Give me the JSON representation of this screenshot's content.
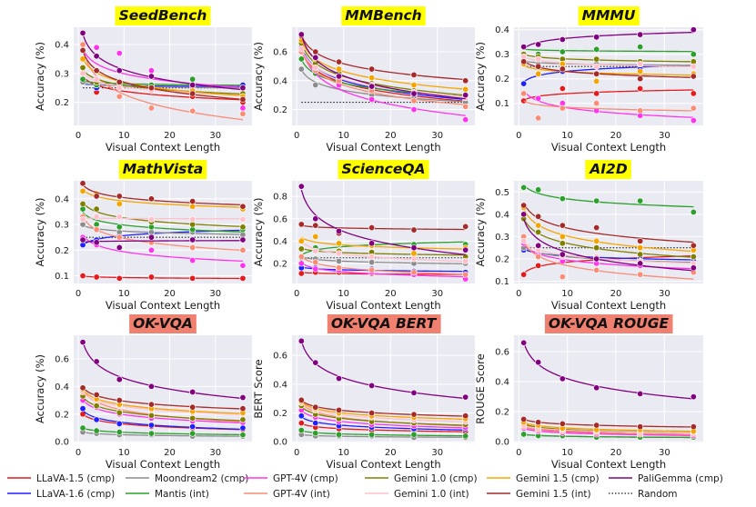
{
  "figure": {
    "background": "#eaeaf2",
    "yellow": "#ffff00",
    "salmon": "#f08070"
  },
  "series": [
    {
      "key": "llava15",
      "label": "LLaVA-1.5 (cmp)",
      "color": "#e41a1c",
      "style": "solid"
    },
    {
      "key": "llava16",
      "label": "LLaVA-1.6 (cmp)",
      "color": "#1f1fff",
      "style": "solid"
    },
    {
      "key": "moondream",
      "label": "Moondream2 (cmp)",
      "color": "#8c8c8c",
      "style": "solid"
    },
    {
      "key": "mantis",
      "label": "Mantis (int)",
      "color": "#2ca02c",
      "style": "solid"
    },
    {
      "key": "gpt4v_cmp",
      "label": "GPT-4V (cmp)",
      "color": "#ff33ee",
      "style": "solid"
    },
    {
      "key": "gpt4v_int",
      "label": "GPT-4V (int)",
      "color": "#fa8c76",
      "style": "solid"
    },
    {
      "key": "gem10_cmp",
      "label": "Gemini 1.0 (cmp)",
      "color": "#808000",
      "style": "solid"
    },
    {
      "key": "gem10_int",
      "label": "Gemini 1.0 (int)",
      "color": "#ffc0cb",
      "style": "solid"
    },
    {
      "key": "gem15_cmp",
      "label": "Gemini 1.5 (cmp)",
      "color": "#f5a500",
      "style": "solid"
    },
    {
      "key": "gem15_int",
      "label": "Gemini 1.5 (int)",
      "color": "#a52a2a",
      "style": "solid"
    },
    {
      "key": "paligemma",
      "label": "PaliGemma (cmp)",
      "color": "#800080",
      "style": "solid"
    },
    {
      "key": "random",
      "label": "Random",
      "color": "#222222",
      "style": "dotted"
    }
  ],
  "chart_data": [
    {
      "type": "scatter",
      "title": "SeedBench",
      "title_bg": "yellow",
      "xlabel": "Visual Context Length",
      "ylabel": "Accuracy (%)",
      "xlim": [
        -1,
        38
      ],
      "ylim": [
        0.12,
        0.46
      ],
      "xticks": [
        0,
        10,
        20,
        30
      ],
      "yticks": [
        0.2,
        0.3,
        0.4
      ],
      "x": [
        1,
        4,
        9,
        16,
        25,
        36
      ],
      "random": 0.25,
      "series": {
        "llava15": [
          0.3,
          0.235,
          0.25,
          0.24,
          0.22,
          0.2
        ],
        "llava16": [
          0.27,
          0.25,
          0.26,
          0.26,
          0.25,
          0.26
        ],
        "moondream": [
          0.27,
          0.26,
          0.25,
          0.25,
          0.26,
          0.25
        ],
        "mantis": [
          0.28,
          0.26,
          0.26,
          0.26,
          0.28,
          0.25
        ],
        "gpt4v_cmp": [
          0.32,
          0.39,
          0.37,
          0.31,
          0.25,
          0.18
        ],
        "gpt4v_int": [
          0.4,
          0.28,
          0.22,
          0.18,
          0.17,
          0.16
        ],
        "gem10_cmp": [
          0.32,
          0.27,
          0.26,
          0.25,
          0.24,
          0.23
        ],
        "gem10_int": [
          0.3,
          0.28,
          0.25,
          0.24,
          0.24,
          0.22
        ],
        "gem15_cmp": [
          0.35,
          0.31,
          0.27,
          0.25,
          0.24,
          0.22
        ],
        "gem15_int": [
          0.38,
          0.31,
          0.27,
          0.25,
          0.23,
          0.21
        ],
        "paligemma": [
          0.44,
          0.36,
          0.31,
          0.29,
          0.26,
          0.25
        ]
      }
    },
    {
      "type": "scatter",
      "title": "MMBench",
      "title_bg": "yellow",
      "xlabel": "Visual Context Length",
      "ylabel": "Accuracy (%)",
      "xlim": [
        -1,
        38
      ],
      "ylim": [
        0.09,
        0.77
      ],
      "xticks": [
        0,
        10,
        20,
        30
      ],
      "yticks": [
        0.2,
        0.4,
        0.6
      ],
      "x": [
        1,
        4,
        9,
        16,
        25,
        36
      ],
      "random": 0.25,
      "series": {
        "llava15": [
          0.62,
          0.45,
          0.4,
          0.35,
          0.3,
          0.25
        ],
        "llava16": [
          0.63,
          0.5,
          0.42,
          0.35,
          0.3,
          0.27
        ],
        "moondream": [
          0.48,
          0.37,
          0.36,
          0.3,
          0.28,
          0.25
        ],
        "mantis": [
          0.55,
          0.45,
          0.38,
          0.34,
          0.32,
          0.3
        ],
        "gpt4v_cmp": [
          0.6,
          0.48,
          0.37,
          0.27,
          0.2,
          0.13
        ],
        "gpt4v_int": [
          0.6,
          0.47,
          0.4,
          0.33,
          0.26,
          0.22
        ],
        "gem10_cmp": [
          0.66,
          0.52,
          0.45,
          0.38,
          0.33,
          0.3
        ],
        "gem10_int": [
          0.62,
          0.49,
          0.43,
          0.37,
          0.32,
          0.28
        ],
        "gem15_cmp": [
          0.68,
          0.55,
          0.48,
          0.42,
          0.37,
          0.34
        ],
        "gem15_int": [
          0.71,
          0.6,
          0.53,
          0.48,
          0.44,
          0.4
        ],
        "paligemma": [
          0.72,
          0.56,
          0.43,
          0.36,
          0.31,
          0.3
        ]
      }
    },
    {
      "type": "scatter",
      "title": "MMMU",
      "title_bg": "yellow",
      "xlabel": "Visual Context Length",
      "ylabel": "Accuracy (%)",
      "xlim": [
        -1,
        38
      ],
      "ylim": [
        0.01,
        0.41
      ],
      "xticks": [
        0,
        10,
        20,
        30
      ],
      "yticks": [
        0.1,
        0.2,
        0.3,
        0.4
      ],
      "x": [
        1,
        4,
        9,
        16,
        25,
        36
      ],
      "random": 0.25,
      "series": {
        "llava15": [
          0.11,
          0.12,
          0.16,
          0.14,
          0.16,
          0.14
        ],
        "llava16": [
          0.18,
          0.22,
          0.23,
          0.25,
          0.24,
          0.25
        ],
        "moondream": [
          0.28,
          0.26,
          0.25,
          0.26,
          0.26,
          0.26
        ],
        "mantis": [
          0.33,
          0.3,
          0.31,
          0.32,
          0.33,
          0.3
        ],
        "gpt4v_cmp": [
          0.14,
          0.12,
          0.1,
          0.07,
          0.05,
          0.03
        ],
        "gpt4v_int": [
          0.14,
          0.04,
          0.08,
          0.1,
          0.07,
          0.08
        ],
        "gem10_cmp": [
          0.3,
          0.29,
          0.28,
          0.28,
          0.27,
          0.27
        ],
        "gem10_int": [
          0.29,
          0.28,
          0.26,
          0.25,
          0.26,
          0.25
        ],
        "gem15_cmp": [
          0.26,
          0.22,
          0.26,
          0.19,
          0.23,
          0.22
        ],
        "gem15_int": [
          0.27,
          0.25,
          0.24,
          0.22,
          0.2,
          0.21
        ],
        "paligemma": [
          0.33,
          0.34,
          0.36,
          0.37,
          0.38,
          0.4
        ]
      }
    },
    {
      "type": "scatter",
      "title": "MathVista",
      "title_bg": "yellow",
      "xlabel": "Visual Context Length",
      "ylabel": "Accuracy (%)",
      "xlim": [
        -1,
        38
      ],
      "ylim": [
        0.07,
        0.47
      ],
      "xticks": [
        0,
        10,
        20,
        30
      ],
      "yticks": [
        0.1,
        0.2,
        0.3,
        0.4
      ],
      "x": [
        1,
        4,
        9,
        16,
        25,
        36
      ],
      "random": 0.25,
      "series": {
        "llava15": [
          0.1,
          0.095,
          0.09,
          0.095,
          0.09,
          0.09
        ],
        "llava16": [
          0.22,
          0.24,
          0.26,
          0.26,
          0.27,
          0.28
        ],
        "moondream": [
          0.3,
          0.28,
          0.27,
          0.27,
          0.27,
          0.26
        ],
        "mantis": [
          0.36,
          0.3,
          0.29,
          0.29,
          0.28,
          0.28
        ],
        "gpt4v_cmp": [
          0.25,
          0.22,
          0.21,
          0.2,
          0.16,
          0.14
        ],
        "gpt4v_int": [
          0.33,
          0.28,
          0.25,
          0.23,
          0.21,
          0.2
        ],
        "gem10_cmp": [
          0.38,
          0.36,
          0.33,
          0.31,
          0.3,
          0.29
        ],
        "gem10_int": [
          0.32,
          0.33,
          0.33,
          0.32,
          0.32,
          0.32
        ],
        "gem15_cmp": [
          0.43,
          0.42,
          0.38,
          0.4,
          0.37,
          0.36
        ],
        "gem15_int": [
          0.46,
          0.41,
          0.41,
          0.4,
          0.39,
          0.37
        ],
        "paligemma": [
          0.24,
          0.23,
          0.21,
          0.25,
          0.24,
          0.24
        ]
      }
    },
    {
      "type": "scatter",
      "title": "ScienceQA",
      "title_bg": "yellow",
      "xlabel": "Visual Context Length",
      "ylabel": "Accuracy (%)",
      "xlim": [
        -1,
        38
      ],
      "ylim": [
        0.02,
        0.94
      ],
      "xticks": [
        0,
        10,
        20,
        30
      ],
      "yticks": [
        0.2,
        0.4,
        0.6,
        0.8
      ],
      "x": [
        1,
        4,
        9,
        16,
        25,
        36
      ],
      "random": 0.25,
      "series": {
        "llava15": [
          0.11,
          0.12,
          0.12,
          0.11,
          0.1,
          0.09
        ],
        "llava16": [
          0.16,
          0.16,
          0.14,
          0.15,
          0.13,
          0.12
        ],
        "moondream": [
          0.26,
          0.24,
          0.22,
          0.21,
          0.2,
          0.2
        ],
        "mantis": [
          0.25,
          0.34,
          0.37,
          0.38,
          0.37,
          0.37
        ],
        "gpt4v_cmp": [
          0.2,
          0.15,
          0.14,
          0.12,
          0.1,
          0.06
        ],
        "gpt4v_int": [
          0.26,
          0.21,
          0.16,
          0.14,
          0.12,
          0.1
        ],
        "gem10_cmp": [
          0.33,
          0.31,
          0.31,
          0.3,
          0.28,
          0.26
        ],
        "gem10_int": [
          0.41,
          0.31,
          0.29,
          0.26,
          0.24,
          0.22
        ],
        "gem15_cmp": [
          0.4,
          0.44,
          0.38,
          0.36,
          0.29,
          0.34
        ],
        "gem15_int": [
          0.55,
          0.54,
          0.47,
          0.52,
          0.5,
          0.53
        ],
        "paligemma": [
          0.89,
          0.6,
          0.49,
          0.38,
          0.34,
          0.32
        ]
      }
    },
    {
      "type": "scatter",
      "title": "AI2D",
      "title_bg": "yellow",
      "xlabel": "Visual Context Length",
      "ylabel": "Accuracy (%)",
      "xlim": [
        -1,
        38
      ],
      "ylim": [
        0.09,
        0.55
      ],
      "xticks": [
        0,
        10,
        20,
        30
      ],
      "yticks": [
        0.1,
        0.2,
        0.3,
        0.4,
        0.5
      ],
      "x": [
        1,
        4,
        9,
        16,
        25,
        36
      ],
      "random": 0.25,
      "series": {
        "llava15": [
          0.13,
          0.17,
          0.19,
          0.2,
          0.2,
          0.21
        ],
        "llava16": [
          0.24,
          0.23,
          0.22,
          0.21,
          0.2,
          0.19
        ],
        "moondream": [
          0.25,
          0.23,
          0.22,
          0.2,
          0.19,
          0.18
        ],
        "mantis": [
          0.52,
          0.51,
          0.47,
          0.46,
          0.46,
          0.41
        ],
        "gpt4v_cmp": [
          0.27,
          0.22,
          0.19,
          0.18,
          0.17,
          0.16
        ],
        "gpt4v_int": [
          0.3,
          0.21,
          0.12,
          0.15,
          0.13,
          0.14
        ],
        "gem10_cmp": [
          0.38,
          0.32,
          0.27,
          0.25,
          0.22,
          0.21
        ],
        "gem10_int": [
          0.28,
          0.24,
          0.21,
          0.21,
          0.19,
          0.18
        ],
        "gem15_cmp": [
          0.43,
          0.35,
          0.3,
          0.28,
          0.25,
          0.24
        ],
        "gem15_int": [
          0.44,
          0.39,
          0.35,
          0.34,
          0.28,
          0.26
        ],
        "paligemma": [
          0.4,
          0.26,
          0.22,
          0.2,
          0.18,
          0.16
        ]
      }
    },
    {
      "type": "scatter",
      "title": "OK-VQA",
      "title_bg": "salmon",
      "xlabel": "Visual Context Length",
      "ylabel": "Accuracy (%)",
      "xlim": [
        -1,
        38
      ],
      "ylim": [
        -0.005,
        0.77
      ],
      "xticks": [
        0,
        10,
        20,
        30
      ],
      "yticks": [
        0.0,
        0.2,
        0.4,
        0.6
      ],
      "x": [
        1,
        4,
        9,
        16,
        25,
        36
      ],
      "random": null,
      "series": {
        "llava15": [
          0.2,
          0.16,
          0.13,
          0.11,
          0.1,
          0.09
        ],
        "llava16": [
          0.24,
          0.16,
          0.13,
          0.12,
          0.11,
          0.1
        ],
        "moondream": [
          0.07,
          0.06,
          0.05,
          0.05,
          0.04,
          0.04
        ],
        "mantis": [
          0.1,
          0.08,
          0.07,
          0.06,
          0.06,
          0.05
        ],
        "gpt4v_cmp": [
          0.3,
          0.25,
          0.2,
          0.17,
          0.15,
          0.14
        ],
        "gpt4v_int": [
          0.39,
          0.28,
          0.22,
          0.19,
          0.17,
          0.16
        ],
        "gem10_cmp": [
          0.33,
          0.26,
          0.21,
          0.19,
          0.17,
          0.16
        ],
        "gem10_int": [
          0.36,
          0.3,
          0.26,
          0.23,
          0.21,
          0.2
        ],
        "gem15_cmp": [
          0.38,
          0.31,
          0.27,
          0.24,
          0.22,
          0.21
        ],
        "gem15_int": [
          0.39,
          0.34,
          0.3,
          0.27,
          0.25,
          0.24
        ],
        "paligemma": [
          0.72,
          0.58,
          0.45,
          0.4,
          0.36,
          0.32
        ]
      }
    },
    {
      "type": "scatter",
      "title": "OK-VQA BERT",
      "title_bg": "salmon",
      "xlabel": "Visual Context Length",
      "ylabel": "BERT Score",
      "xlim": [
        -1,
        38
      ],
      "ylim": [
        -0.005,
        0.74
      ],
      "xticks": [
        0,
        10,
        20,
        30
      ],
      "yticks": [
        0.0,
        0.2,
        0.4,
        0.6
      ],
      "x": [
        1,
        4,
        9,
        16,
        25,
        36
      ],
      "random": null,
      "series": {
        "llava15": [
          0.13,
          0.1,
          0.09,
          0.08,
          0.08,
          0.07
        ],
        "llava16": [
          0.18,
          0.13,
          0.11,
          0.1,
          0.09,
          0.09
        ],
        "moondream": [
          0.05,
          0.04,
          0.04,
          0.04,
          0.03,
          0.03
        ],
        "mantis": [
          0.08,
          0.06,
          0.05,
          0.05,
          0.05,
          0.04
        ],
        "gpt4v_cmp": [
          0.22,
          0.17,
          0.14,
          0.12,
          0.11,
          0.1
        ],
        "gpt4v_int": [
          0.28,
          0.2,
          0.16,
          0.14,
          0.13,
          0.12
        ],
        "gem10_cmp": [
          0.25,
          0.19,
          0.16,
          0.14,
          0.13,
          0.12
        ],
        "gem10_int": [
          0.27,
          0.22,
          0.19,
          0.17,
          0.15,
          0.14
        ],
        "gem15_cmp": [
          0.28,
          0.23,
          0.2,
          0.18,
          0.17,
          0.16
        ],
        "gem15_int": [
          0.29,
          0.24,
          0.22,
          0.2,
          0.19,
          0.18
        ],
        "paligemma": [
          0.7,
          0.55,
          0.44,
          0.39,
          0.34,
          0.31
        ]
      }
    },
    {
      "type": "scatter",
      "title": "OK-VQA ROUGE",
      "title_bg": "salmon",
      "xlabel": "Visual Context Length",
      "ylabel": "ROUGE Score",
      "xlim": [
        -1,
        38
      ],
      "ylim": [
        -0.005,
        0.71
      ],
      "xticks": [
        0,
        10,
        20,
        30
      ],
      "yticks": [
        0.0,
        0.2,
        0.4,
        0.6
      ],
      "x": [
        1,
        4,
        9,
        16,
        25,
        36
      ],
      "random": null,
      "series": {
        "llava15": [
          0.12,
          0.09,
          0.07,
          0.06,
          0.05,
          0.05
        ],
        "llava16": [
          0.1,
          0.08,
          0.07,
          0.06,
          0.05,
          0.05
        ],
        "moondream": [
          0.05,
          0.04,
          0.04,
          0.03,
          0.03,
          0.03
        ],
        "mantis": [
          0.05,
          0.04,
          0.04,
          0.03,
          0.03,
          0.03
        ],
        "gpt4v_cmp": [
          0.09,
          0.07,
          0.06,
          0.05,
          0.05,
          0.04
        ],
        "gpt4v_int": [
          0.1,
          0.08,
          0.07,
          0.06,
          0.05,
          0.05
        ],
        "gem10_cmp": [
          0.12,
          0.1,
          0.08,
          0.07,
          0.07,
          0.06
        ],
        "gem10_int": [
          0.11,
          0.09,
          0.08,
          0.07,
          0.06,
          0.06
        ],
        "gem15_cmp": [
          0.13,
          0.11,
          0.09,
          0.08,
          0.08,
          0.07
        ],
        "gem15_int": [
          0.15,
          0.13,
          0.12,
          0.11,
          0.1,
          0.1
        ],
        "paligemma": [
          0.66,
          0.53,
          0.42,
          0.36,
          0.32,
          0.3
        ]
      }
    }
  ]
}
